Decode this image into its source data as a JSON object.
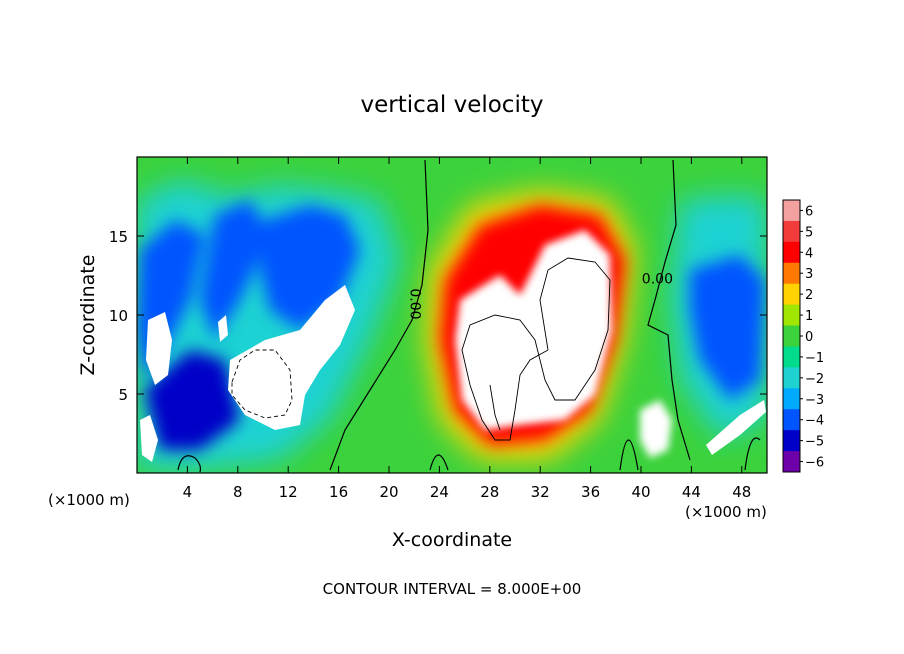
{
  "chart_data": {
    "type": "heatmap",
    "title": "vertical velocity",
    "xlabel": "X-coordinate",
    "ylabel": "Z-coordinate",
    "x_unit_left": "(×1000 m)",
    "x_unit_right": "(×1000 m)",
    "footer": "CONTOUR INTERVAL = 8.000E+00",
    "xlim": [
      0,
      50
    ],
    "ylim": [
      0,
      20
    ],
    "x_ticks": [
      4,
      8,
      12,
      16,
      20,
      24,
      28,
      32,
      36,
      40,
      44,
      48
    ],
    "x_tick_labels": [
      "4",
      "8",
      "12",
      "16",
      "20",
      "24",
      "28",
      "32",
      "36",
      "40",
      "44",
      "48"
    ],
    "y_ticks": [
      5,
      10,
      15
    ],
    "y_tick_labels": [
      "5",
      "10",
      "15"
    ],
    "contour_labels": [
      {
        "text": "0.00",
        "x": 21.7,
        "y": 10.7,
        "rotate": 90
      },
      {
        "text": "0.00",
        "x": 41.3,
        "y": 12.0,
        "rotate": 0
      }
    ],
    "colorbar": {
      "levels": [
        6,
        5,
        4,
        3,
        2,
        1,
        0,
        -1,
        -2,
        -3,
        -4,
        -5,
        -6
      ],
      "labels": [
        "6",
        "5",
        "4",
        "3",
        "2",
        "1",
        "0",
        "−1",
        "−2",
        "−3",
        "−4",
        "−5",
        "−6"
      ],
      "colors": [
        "#f2a0a0",
        "#f23c3c",
        "#ff0000",
        "#ff7800",
        "#ffd200",
        "#a0e600",
        "#3cd23c",
        "#00dc8c",
        "#1ed2d2",
        "#00aaff",
        "#0055ff",
        "#0000c8",
        "#6e00aa"
      ]
    },
    "field_features": {
      "background_value": 0.5,
      "white_means_out_of_range": true,
      "updraft_core_center_x": 32,
      "updraft_core_center_z": 8,
      "downdraft_region_x": [
        1,
        17
      ],
      "downdraft_region_z": [
        2,
        18
      ]
    }
  }
}
